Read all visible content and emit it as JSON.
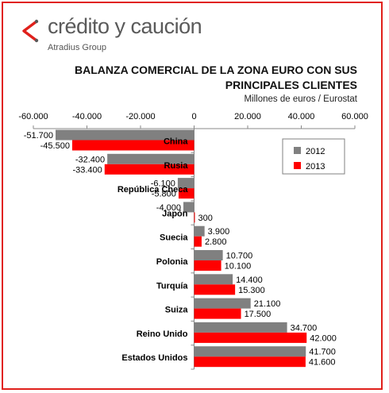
{
  "brand": {
    "name": "crédito y caución",
    "subtitle": "Atradius Group",
    "accent_color": "#e0201b",
    "text_color": "#5a5a5a"
  },
  "chart_data": {
    "type": "bar",
    "orientation": "horizontal",
    "title_line1": "BALANZA COMERCIAL DE LA ZONA EURO CON SUS",
    "title_line2": "PRINCIPALES CLIENTES",
    "subtitle": "Millones de euros / Eurostat",
    "categories": [
      "China",
      "Rusia",
      "República Checa",
      "Japón",
      "Suecia",
      "Polonia",
      "Turquía",
      "Suiza",
      "Reino Unido",
      "Estados Unidos"
    ],
    "series": [
      {
        "name": "2012",
        "color": "#808080",
        "values": [
          -51700,
          -32400,
          -6100,
          -4000,
          3900,
          10700,
          14400,
          21100,
          34700,
          41700
        ],
        "labels": [
          "-51.700",
          "-32.400",
          "-6.100",
          "-4.000",
          "3.900",
          "10.700",
          "14.400",
          "21.100",
          "34.700",
          "41.700"
        ]
      },
      {
        "name": "2013",
        "color": "#ff0000",
        "values": [
          -45500,
          -33400,
          -5800,
          300,
          2800,
          10100,
          15300,
          17500,
          42000,
          41600
        ],
        "labels": [
          "-45.500",
          "-33.400",
          "-5.800",
          "300",
          "2.800",
          "10.100",
          "15.300",
          "17.500",
          "42.000",
          "41.600"
        ]
      }
    ],
    "xlim": [
      -60000,
      60000
    ],
    "x_ticks": [
      -60000,
      -40000,
      -20000,
      0,
      20000,
      40000,
      60000
    ],
    "x_tick_labels": [
      "-60.000",
      "-40.000",
      "-20.000",
      "0",
      "20.000",
      "40.000",
      "60.000"
    ],
    "axis_position": "top",
    "legend_position": "top-right",
    "grid": false
  }
}
